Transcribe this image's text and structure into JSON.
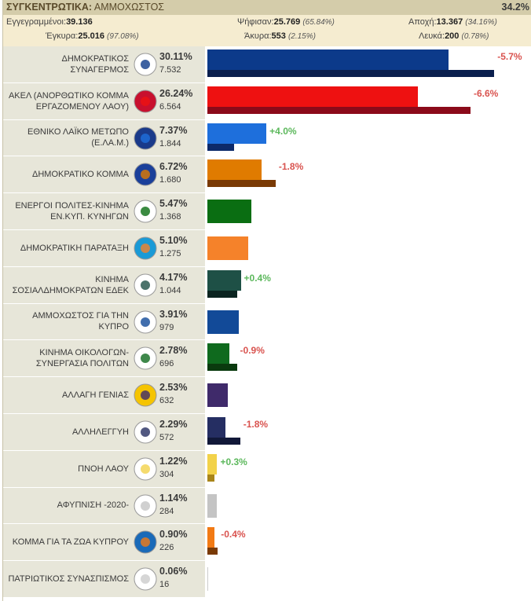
{
  "header": {
    "title_bold": "ΣΥΓΚΕΝΤΡΩΤΙΚΑ:",
    "title_rest": " ΑΜΜΟΧΩΣΤΟΣ",
    "counted_pct": "34.2%"
  },
  "stats": {
    "registered_label": "Εγγεγραμμένοι:",
    "registered": "39.136",
    "voted_label": "Ψήφισαν:",
    "voted": "25.769",
    "voted_pct": "(65.84%)",
    "abstention_label": "Αποχή:",
    "abstention": "13.367",
    "abstention_pct": "(34.16%)",
    "valid_label": "Έγκυρα:",
    "valid": "25.016",
    "valid_pct": "(97.08%)",
    "invalid_label": "Άκυρα:",
    "invalid": "553",
    "invalid_pct": "(2.15%)",
    "blank_label": "Λευκά:",
    "blank": "200",
    "blank_pct": "(0.78%)"
  },
  "chart_data": {
    "type": "bar",
    "orientation": "horizontal",
    "series": [
      {
        "name": "current",
        "values": [
          30.11,
          26.24,
          7.37,
          6.72,
          5.47,
          5.1,
          4.17,
          3.91,
          2.78,
          2.53,
          2.29,
          1.22,
          1.14,
          0.9,
          0.06
        ]
      },
      {
        "name": "previous",
        "values": [
          35.81,
          32.84,
          3.37,
          8.52,
          null,
          null,
          3.77,
          null,
          3.68,
          null,
          4.09,
          0.92,
          null,
          1.3,
          null
        ]
      }
    ],
    "parties": [
      {
        "name": "ΔΗΜΟΚΡΑΤΙΚΟΣ ΣΥΝΑΓΕΡΜΟΣ",
        "pct": "30.11%",
        "votes": "7.532",
        "change": "-5.7%",
        "value": 30.11,
        "prev": 35.81,
        "color": "#0c3a8a",
        "prev_color": "#0a1f4e",
        "logo": "disy-eagle-icon",
        "logo_bg": "#ffffff"
      },
      {
        "name": "ΑΚΕΛ (ΑΝΟΡΘΩΤΙΚΟ ΚΟΜΜΑ ΕΡΓΑΖΟΜΕΝΟΥ ΛΑΟΥ)",
        "pct": "26.24%",
        "votes": "6.564",
        "change": "-6.6%",
        "value": 26.24,
        "prev": 32.84,
        "color": "#ee1111",
        "prev_color": "#8b0a1a",
        "logo": "akel-emblem-icon",
        "logo_bg": "#c8102e"
      },
      {
        "name": "ΕΘΝΙΚΟ ΛΑΪΚΟ ΜΕΤΩΠΟ (Ε.ΛΑ.Μ.)",
        "pct": "7.37%",
        "votes": "1.844",
        "change": "+4.0%",
        "value": 7.37,
        "prev": 3.37,
        "color": "#1e6fdc",
        "prev_color": "#0d2a6a",
        "logo": "elam-emblem-icon",
        "logo_bg": "#1a3a8a"
      },
      {
        "name": "ΔΗΜΟΚΡΑΤΙΚΟ ΚΟΜΜΑ",
        "pct": "6.72%",
        "votes": "1.680",
        "change": "-1.8%",
        "value": 6.72,
        "prev": 8.52,
        "color": "#e07b00",
        "prev_color": "#7a3a05",
        "logo": "diko-emblem-icon",
        "logo_bg": "#1a3f9a"
      },
      {
        "name": "ΕΝΕΡΓΟΙ ΠΟΛΙΤΕΣ-ΚΙΝΗΜΑ ΕΝ.ΚΥΠ. ΚΥΝΗΓΩΝ",
        "pct": "5.47%",
        "votes": "1.368",
        "change": "",
        "value": 5.47,
        "prev": null,
        "color": "#0a6e12",
        "prev_color": "#0a6e12",
        "logo": "energoi-politis-logo-icon",
        "logo_bg": "#ffffff"
      },
      {
        "name": "ΔΗΜΟΚΡΑΤΙΚΗ ΠΑΡΑΤΑΞΗ",
        "pct": "5.10%",
        "votes": "1.275",
        "change": "",
        "value": 5.1,
        "prev": null,
        "color": "#f5822a",
        "prev_color": "#f5822a",
        "logo": "dipa-logo-icon",
        "logo_bg": "#1a9ad6"
      },
      {
        "name": "ΚΙΝΗΜΑ ΣΟΣΙΑΛΔΗΜΟΚΡΑΤΩΝ ΕΔΕΚ",
        "pct": "4.17%",
        "votes": "1.044",
        "change": "+0.4%",
        "value": 4.17,
        "prev": 3.77,
        "color": "#1e5046",
        "prev_color": "#0b2420",
        "logo": "edek-fist-icon",
        "logo_bg": "#ffffff"
      },
      {
        "name": "ΑΜΜΟΧΩΣΤΟΣ ΓΙΑ ΤΗΝ ΚΥΠΡΟ",
        "pct": "3.91%",
        "votes": "979",
        "change": "",
        "value": 3.91,
        "prev": null,
        "color": "#124a98",
        "prev_color": "#124a98",
        "logo": "ammochostos-logo-icon",
        "logo_bg": "#ffffff"
      },
      {
        "name": "ΚΙΝΗΜΑ ΟΙΚΟΛΟΓΩΝ-ΣΥΝΕΡΓΑΣΙΑ ΠΟΛΙΤΩΝ",
        "pct": "2.78%",
        "votes": "696",
        "change": "-0.9%",
        "value": 2.78,
        "prev": 3.68,
        "color": "#0f6a1e",
        "prev_color": "#0a3a0e",
        "logo": "ecologists-sun-icon",
        "logo_bg": "#ffffff"
      },
      {
        "name": "ΑΛΛΑΓΗ ΓΕΝΙΑΣ",
        "pct": "2.53%",
        "votes": "632",
        "change": "",
        "value": 2.53,
        "prev": null,
        "color": "#3f2a6a",
        "prev_color": "#3f2a6a",
        "logo": "allagi-genias-logo-icon",
        "logo_bg": "#f5c400"
      },
      {
        "name": "ΑΛΛΗΛΕΓΓΥΗ",
        "pct": "2.29%",
        "votes": "572",
        "change": "-1.8%",
        "value": 2.29,
        "prev": 4.09,
        "color": "#252e62",
        "prev_color": "#111838",
        "logo": "allileggyi-logo-icon",
        "logo_bg": "#ffffff"
      },
      {
        "name": "ΠΝΟΗ ΛΑΟΥ",
        "pct": "1.22%",
        "votes": "304",
        "change": "+0.3%",
        "value": 1.22,
        "prev": 0.92,
        "color": "#f2d24a",
        "prev_color": "#a8851a",
        "logo": "pnoi-laou-logo-icon",
        "logo_bg": "#ffffff"
      },
      {
        "name": "ΑΦΥΠΝΙΣΗ -2020-",
        "pct": "1.14%",
        "votes": "284",
        "change": "",
        "value": 1.14,
        "prev": null,
        "color": "#c4c4c4",
        "prev_color": "#c4c4c4",
        "logo": "afypnisi-logo-icon",
        "logo_bg": "#ffffff"
      },
      {
        "name": "ΚΟΜΜΑ ΓΙΑ ΤΑ ΖΩΑ ΚΥΠΡΟΥ",
        "pct": "0.90%",
        "votes": "226",
        "change": "-0.4%",
        "value": 0.9,
        "prev": 1.3,
        "color": "#f27a14",
        "prev_color": "#7a3a05",
        "logo": "animal-party-paw-icon",
        "logo_bg": "#1a6ab8"
      },
      {
        "name": "ΠΑΤΡΙΩΤΙΚΟΣ ΣΥΝΑΣΠΙΣΜΟΣ",
        "pct": "0.06%",
        "votes": "16",
        "change": "",
        "value": 0.06,
        "prev": null,
        "color": "#cccccc",
        "prev_color": "#cccccc",
        "logo": "patriotikos-logo-icon",
        "logo_bg": "#ffffff"
      }
    ],
    "xlim": [
      0,
      40
    ]
  }
}
